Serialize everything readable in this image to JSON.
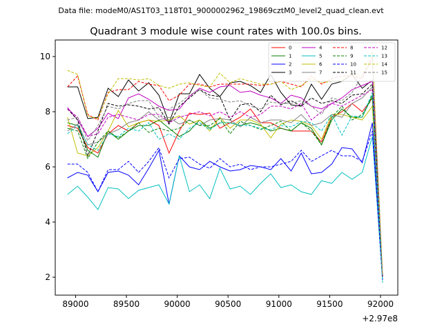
{
  "figure": {
    "suptitle": "Data file: modeM0/AS1T03_118T01_9000002962_19869cztM0_level2_quad_clean.evt"
  },
  "chart_data": {
    "type": "line",
    "title": "Quadrant 3 module wise count rates with 100.0s bins.",
    "xlabel": "",
    "ylabel": "",
    "x_offset_label": "+2.97e8",
    "xlim": [
      88800,
      92170
    ],
    "ylim": [
      1.35,
      10.6
    ],
    "xticks": [
      89000,
      89500,
      90000,
      90500,
      91000,
      91500,
      92000
    ],
    "xtick_labels": [
      "89000",
      "89500",
      "90000",
      "90500",
      "91000",
      "91500",
      "92000"
    ],
    "yticks": [
      2,
      4,
      6,
      8,
      10
    ],
    "ytick_labels": [
      "2",
      "4",
      "6",
      "8",
      "10"
    ],
    "grid": false,
    "legend_position": "top-right",
    "x": [
      88920,
      89020,
      89120,
      89220,
      89320,
      89420,
      89520,
      89620,
      89720,
      89820,
      89920,
      90020,
      90120,
      90220,
      90320,
      90420,
      90520,
      90620,
      90720,
      90820,
      90920,
      91020,
      91120,
      91220,
      91320,
      91420,
      91520,
      91620,
      91720,
      91820,
      91920,
      92020
    ],
    "series": [
      {
        "name": "0",
        "color": "#ff0000",
        "dash": "solid",
        "values": [
          7.5,
          7.4,
          6.7,
          6.5,
          7.2,
          7.5,
          7.3,
          7.6,
          7.7,
          7.5,
          6.5,
          7.3,
          7.95,
          7.9,
          7.95,
          7.4,
          7.6,
          7.8,
          8.1,
          7.6,
          7.6,
          7.4,
          7.3,
          7.3,
          7.3,
          6.9,
          7.8,
          8.0,
          8.3,
          8.0,
          8.5,
          2.0
        ]
      },
      {
        "name": "1",
        "color": "#008000",
        "dash": "solid",
        "values": [
          7.6,
          7.5,
          6.6,
          6.35,
          7.3,
          7.0,
          7.3,
          7.5,
          7.5,
          7.7,
          7.4,
          7.1,
          7.3,
          7.7,
          7.4,
          7.6,
          7.6,
          7.5,
          7.6,
          7.5,
          7.3,
          7.4,
          7.3,
          7.6,
          7.4,
          6.8,
          7.7,
          8.1,
          7.8,
          7.8,
          8.6,
          2.0
        ]
      },
      {
        "name": "2",
        "color": "#0000ff",
        "dash": "solid",
        "values": [
          5.6,
          5.8,
          5.7,
          5.1,
          5.8,
          5.85,
          5.7,
          5.35,
          5.95,
          6.6,
          4.65,
          6.4,
          6.0,
          5.9,
          6.2,
          6.0,
          5.85,
          5.9,
          6.05,
          6.0,
          5.9,
          6.3,
          5.85,
          6.5,
          5.75,
          5.8,
          6.1,
          6.7,
          6.65,
          6.15,
          7.6,
          2.0
        ]
      },
      {
        "name": "3",
        "color": "#000000",
        "dash": "solid",
        "values": [
          8.9,
          8.9,
          7.75,
          7.8,
          8.85,
          8.55,
          9.15,
          8.75,
          9.05,
          8.6,
          7.6,
          8.65,
          8.65,
          9.35,
          8.85,
          8.55,
          9.05,
          9.1,
          8.95,
          8.7,
          9.35,
          8.7,
          8.25,
          8.2,
          9.0,
          8.45,
          9.0,
          9.1,
          9.35,
          8.85,
          9.15,
          2.0
        ]
      },
      {
        "name": "4",
        "color": "#c000c0",
        "dash": "solid",
        "values": [
          8.15,
          7.7,
          7.1,
          7.4,
          7.95,
          7.75,
          8.5,
          8.65,
          8.45,
          8.2,
          8.05,
          8.1,
          8.55,
          8.85,
          8.7,
          8.9,
          8.95,
          8.7,
          8.75,
          8.6,
          8.5,
          8.3,
          8.6,
          8.5,
          8.2,
          8.1,
          8.3,
          8.5,
          8.8,
          8.95,
          9.1,
          2.0
        ]
      },
      {
        "name": "5",
        "color": "#00bfbf",
        "dash": "solid",
        "values": [
          5.0,
          5.3,
          4.9,
          4.45,
          5.25,
          5.2,
          4.85,
          5.15,
          5.25,
          5.35,
          4.65,
          6.4,
          5.1,
          5.35,
          4.85,
          5.95,
          5.2,
          5.3,
          5.0,
          5.4,
          5.75,
          5.25,
          5.35,
          5.1,
          5.0,
          5.5,
          5.4,
          5.8,
          5.55,
          5.8,
          7.1,
          1.9
        ]
      },
      {
        "name": "6",
        "color": "#bfbf00",
        "dash": "solid",
        "values": [
          7.8,
          6.5,
          6.4,
          6.7,
          7.3,
          8.05,
          7.45,
          7.6,
          7.7,
          7.65,
          7.7,
          7.85,
          7.55,
          7.7,
          7.3,
          7.8,
          7.4,
          7.7,
          7.7,
          7.55,
          7.05,
          7.55,
          7.7,
          7.65,
          7.5,
          7.0,
          7.9,
          7.9,
          7.8,
          7.7,
          8.2,
          2.0
        ]
      },
      {
        "name": "7",
        "color": "#808080",
        "dash": "solid",
        "values": [
          7.3,
          7.55,
          6.8,
          6.9,
          7.2,
          7.35,
          7.6,
          7.7,
          8.0,
          7.7,
          7.8,
          7.55,
          7.7,
          7.5,
          7.7,
          7.75,
          7.7,
          7.45,
          7.8,
          7.6,
          7.7,
          7.7,
          7.6,
          7.9,
          7.5,
          7.6,
          7.9,
          7.8,
          8.3,
          8.5,
          8.9,
          2.0
        ]
      },
      {
        "name": "8",
        "color": "#ff0000",
        "dash": "dashed",
        "values": [
          8.9,
          9.3,
          7.9,
          7.7,
          8.7,
          8.8,
          8.8,
          9.1,
          9.0,
          8.95,
          8.4,
          8.6,
          9.0,
          9.0,
          8.9,
          9.0,
          9.0,
          9.0,
          9.0,
          8.95,
          9.0,
          9.1,
          9.0,
          8.9,
          9.3,
          9.0,
          9.2,
          9.3,
          9.3,
          9.2,
          10.0,
          2.0
        ]
      },
      {
        "name": "9",
        "color": "#008000",
        "dash": "dashed",
        "values": [
          7.4,
          7.3,
          6.3,
          6.9,
          7.3,
          7.05,
          7.3,
          7.6,
          7.25,
          7.4,
          7.3,
          7.4,
          7.7,
          7.5,
          7.5,
          7.75,
          7.2,
          7.65,
          7.5,
          7.35,
          7.5,
          7.65,
          7.3,
          7.6,
          7.3,
          6.8,
          7.8,
          8.2,
          7.7,
          7.9,
          8.5,
          2.0
        ]
      },
      {
        "name": "10",
        "color": "#0000ff",
        "dash": "dashed",
        "values": [
          6.1,
          6.1,
          5.8,
          5.1,
          5.9,
          5.9,
          6.2,
          5.8,
          6.2,
          6.7,
          5.6,
          6.3,
          6.35,
          6.1,
          5.95,
          6.3,
          6.0,
          6.1,
          5.9,
          6.0,
          6.0,
          6.1,
          6.2,
          6.6,
          6.2,
          6.4,
          6.6,
          6.4,
          6.4,
          6.2,
          7.3,
          1.9
        ]
      },
      {
        "name": "11",
        "color": "#000000",
        "dash": "dashed",
        "values": [
          8.1,
          7.7,
          6.4,
          7.3,
          8.3,
          8.2,
          8.25,
          8.2,
          8.1,
          8.15,
          7.55,
          8.2,
          8.5,
          8.8,
          8.6,
          8.55,
          7.7,
          8.25,
          8.3,
          8.0,
          8.6,
          8.25,
          8.4,
          8.2,
          8.5,
          8.3,
          8.4,
          8.3,
          8.6,
          8.65,
          9.0,
          2.0
        ]
      },
      {
        "name": "12",
        "color": "#c000c0",
        "dash": "dashed",
        "values": [
          8.1,
          7.8,
          7.1,
          7.2,
          7.8,
          7.9,
          7.8,
          7.7,
          7.9,
          7.9,
          7.6,
          7.8,
          7.9,
          8.0,
          7.85,
          8.0,
          7.8,
          8.0,
          7.8,
          7.9,
          8.2,
          8.2,
          8.1,
          8.3,
          7.7,
          8.0,
          8.3,
          8.2,
          8.4,
          8.6,
          8.8,
          2.0
        ]
      },
      {
        "name": "13",
        "color": "#00bfbf",
        "dash": "dashed",
        "values": [
          7.2,
          7.5,
          6.8,
          6.6,
          7.2,
          7.1,
          7.4,
          7.3,
          7.6,
          7.0,
          7.2,
          7.0,
          7.4,
          7.6,
          7.35,
          7.6,
          7.6,
          7.5,
          7.5,
          7.4,
          7.35,
          7.5,
          7.45,
          7.65,
          7.6,
          7.3,
          7.9,
          7.15,
          7.85,
          7.8,
          8.7,
          1.8
        ]
      },
      {
        "name": "14",
        "color": "#bfbf00",
        "dash": "dashed",
        "values": [
          9.5,
          9.35,
          7.85,
          7.75,
          8.65,
          9.2,
          9.2,
          9.15,
          9.2,
          8.95,
          8.85,
          9.0,
          9.05,
          8.95,
          8.9,
          9.4,
          9.05,
          9.2,
          9.1,
          9.0,
          9.0,
          9.1,
          8.8,
          8.95,
          9.2,
          9.05,
          9.1,
          9.15,
          9.35,
          9.3,
          10.2,
          2.1
        ]
      },
      {
        "name": "15",
        "color": "#808080",
        "dash": "dashed",
        "values": [
          7.7,
          7.8,
          6.95,
          7.5,
          8.2,
          8.1,
          8.3,
          8.4,
          8.4,
          7.8,
          8.1,
          8.3,
          8.6,
          8.8,
          8.5,
          8.45,
          8.35,
          8.4,
          8.2,
          8.1,
          8.35,
          8.3,
          8.3,
          8.4,
          8.2,
          7.9,
          8.5,
          8.4,
          8.7,
          9.3,
          9.9,
          2.0
        ]
      }
    ]
  }
}
